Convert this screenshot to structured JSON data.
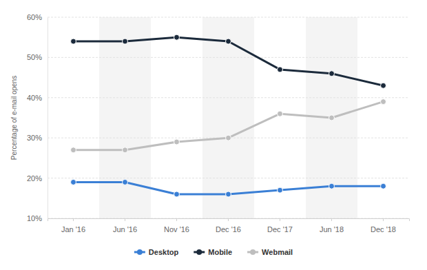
{
  "chart_data": {
    "type": "line",
    "y_label": "Percentage of e-mail opens",
    "categories": [
      "Jan '16",
      "Jun '16",
      "Nov '16",
      "Dec '16",
      "Dec '17",
      "Jun '18",
      "Dec '18"
    ],
    "series": [
      {
        "name": "Desktop",
        "color": "#3a7fd5",
        "values": [
          19,
          19,
          16,
          16,
          17,
          18,
          18
        ]
      },
      {
        "name": "Mobile",
        "color": "#1b2a3b",
        "values": [
          54,
          54,
          55,
          54,
          47,
          46,
          43
        ]
      },
      {
        "name": "Webmail",
        "color": "#bebebe",
        "values": [
          27,
          27,
          29,
          30,
          36,
          35,
          39
        ]
      }
    ],
    "ylim": [
      10,
      60
    ],
    "yticks": [
      {
        "value": 10,
        "label": "10%"
      },
      {
        "value": 20,
        "label": "20%"
      },
      {
        "value": 30,
        "label": "30%"
      },
      {
        "value": 40,
        "label": "40%"
      },
      {
        "value": 50,
        "label": "50%"
      },
      {
        "value": 60,
        "label": "60%"
      }
    ],
    "grid": true,
    "legend": "bottom",
    "marker": "circle"
  }
}
